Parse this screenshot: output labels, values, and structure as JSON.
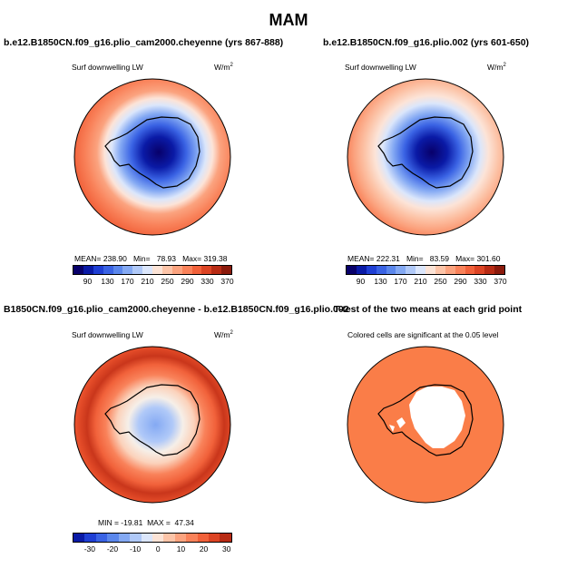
{
  "figure": {
    "title": "MAM"
  },
  "panels": [
    {
      "title": "b.e12.B1850CN.f09_g16.plio_cam2000.cheyenne (yrs 867-888)",
      "field_label": "Surf downwelling LW",
      "units": "W/m",
      "units_sup": "2",
      "stats": "MEAN= 238.90   Min=   78.93   Max= 319.38",
      "colorbar_ticks": [
        "90",
        "130",
        "170",
        "210",
        "250",
        "290",
        "330",
        "370"
      ],
      "colors": [
        "#08006a",
        "#0a1aa6",
        "#1f3fd4",
        "#3a63e4",
        "#5b87ec",
        "#84a9f3",
        "#b0c9f8",
        "#dbe6fb",
        "#fbe3d6",
        "#fcc4a8",
        "#fba37f",
        "#f9825a",
        "#f1613a",
        "#dc4424",
        "#b82b14",
        "#8b1a0c"
      ]
    },
    {
      "title": "b.e12.B1850CN.f09_g16.plio.002 (yrs 601-650)",
      "field_label": "Surf downwelling LW",
      "units": "W/m",
      "units_sup": "2",
      "stats": "MEAN= 222.31   Min=   83.59   Max= 301.60",
      "colorbar_ticks": [
        "90",
        "130",
        "170",
        "210",
        "250",
        "290",
        "330",
        "370"
      ]
    },
    {
      "title": "B1850CN.f09_g16.plio_cam2000.cheyenne - b.e12.B1850CN.f09_g16.plio.002",
      "field_label": "Surf downwelling LW",
      "units": "W/m",
      "units_sup": "2",
      "stats": "MIN = -19.81  MAX =  47.34",
      "colorbar_ticks": [
        "-30",
        "-20",
        "-10",
        "0",
        "10",
        "20",
        "30"
      ],
      "colors": [
        "#08006a",
        "#0a1aa6",
        "#1f3fd4",
        "#3a63e4",
        "#5b87ec",
        "#84a9f3",
        "#b0c9f8",
        "#dbe6fb",
        "#fbe3d6",
        "#fcc4a8",
        "#fba37f",
        "#f9825a",
        "#f1613a",
        "#dc4424",
        "#b82b14",
        "#8b1a0c"
      ]
    },
    {
      "title": "T-test of the two means at each grid point",
      "field_label": "Colored cells are significant at the 0.05 level"
    }
  ]
}
